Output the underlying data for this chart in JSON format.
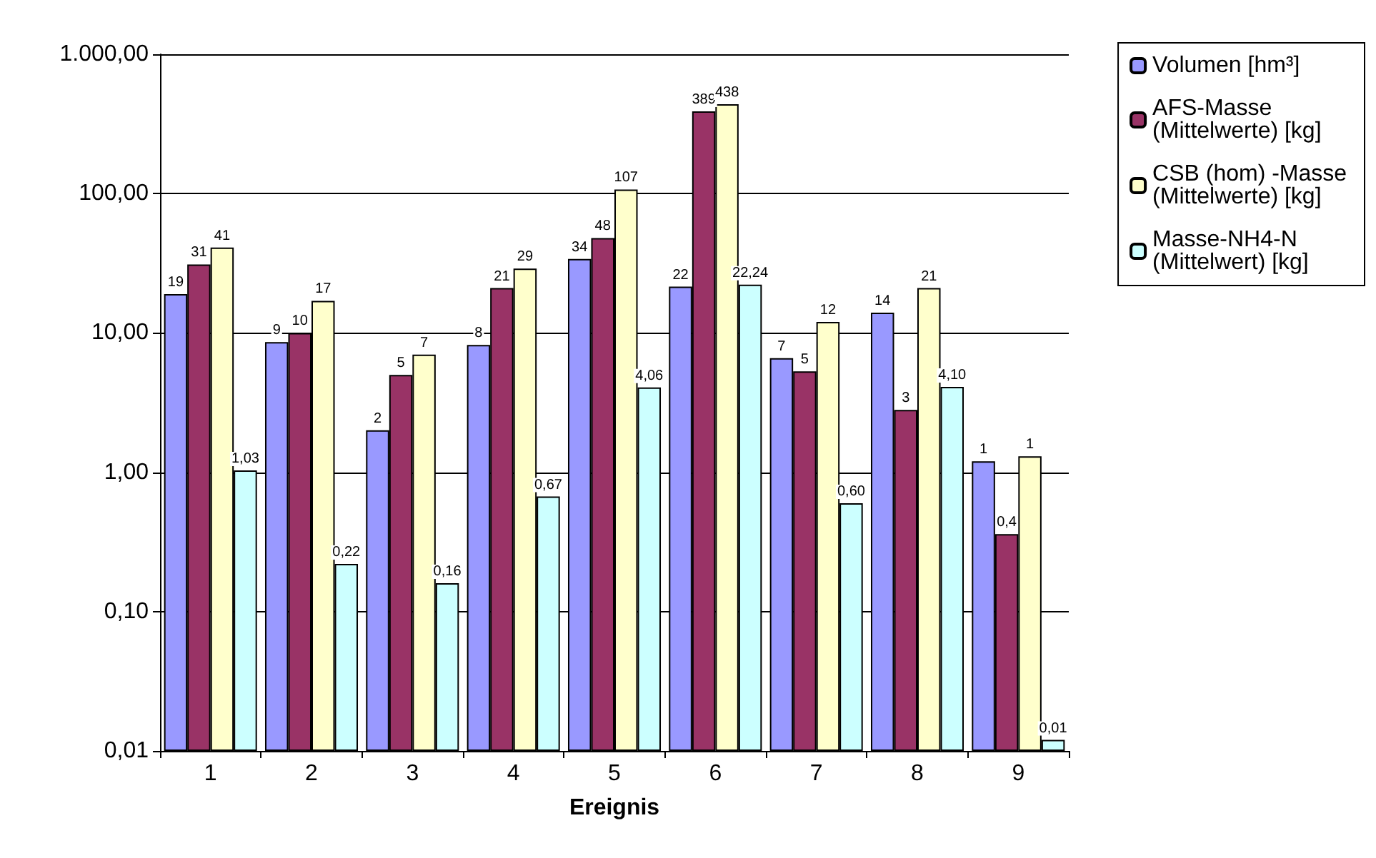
{
  "chart_data": {
    "type": "bar",
    "xlabel": "Ereignis",
    "categories": [
      "1",
      "2",
      "3",
      "4",
      "5",
      "6",
      "7",
      "8",
      "9"
    ],
    "series": [
      {
        "name": "Volumen [hm³]",
        "color": "#9999ff",
        "values": [
          19,
          8.6,
          2,
          8.2,
          34,
          21.5,
          6.6,
          14,
          1.2
        ],
        "value_labels": [
          "19",
          "9",
          "2",
          "8",
          "34",
          "22",
          "7",
          "14",
          "1"
        ]
      },
      {
        "name": "AFS-Masse (Mittelwerte) [kg]",
        "color": "#993366",
        "values": [
          31,
          10,
          5,
          21,
          48,
          389,
          5.3,
          2.8,
          0.36
        ],
        "value_labels": [
          "31",
          "10",
          "5",
          "21",
          "48",
          "389",
          "5",
          "3",
          "0,4"
        ]
      },
      {
        "name": "CSB (hom) -Masse (Mittelwerte) [kg]",
        "color": "#ffffcc",
        "values": [
          41,
          17,
          7,
          29,
          107,
          438,
          12,
          21,
          1.3
        ],
        "value_labels": [
          "41",
          "17",
          "7",
          "29",
          "107",
          "438",
          "12",
          "21",
          "1"
        ]
      },
      {
        "name": "Masse-NH4-N (Mittelwert) [kg]",
        "color": "#ccffff",
        "values": [
          1.03,
          0.22,
          0.16,
          0.67,
          4.06,
          22.24,
          0.6,
          4.1,
          0.012
        ],
        "value_labels": [
          "1,03",
          "0,22",
          "0,16",
          "0,67",
          "4,06",
          "22,24",
          "0,60",
          "4,10",
          "0,01"
        ]
      }
    ],
    "log": true,
    "ylim": [
      0.01,
      1000
    ],
    "yticks": [
      {
        "value": 0.01,
        "label": "0,01"
      },
      {
        "value": 0.1,
        "label": "0,10"
      },
      {
        "value": 1,
        "label": "1,00"
      },
      {
        "value": 10,
        "label": "10,00"
      },
      {
        "value": 100,
        "label": "100,00"
      },
      {
        "value": 1000,
        "label": "1.000,00"
      }
    ],
    "grid": "y",
    "legend": "top right"
  }
}
